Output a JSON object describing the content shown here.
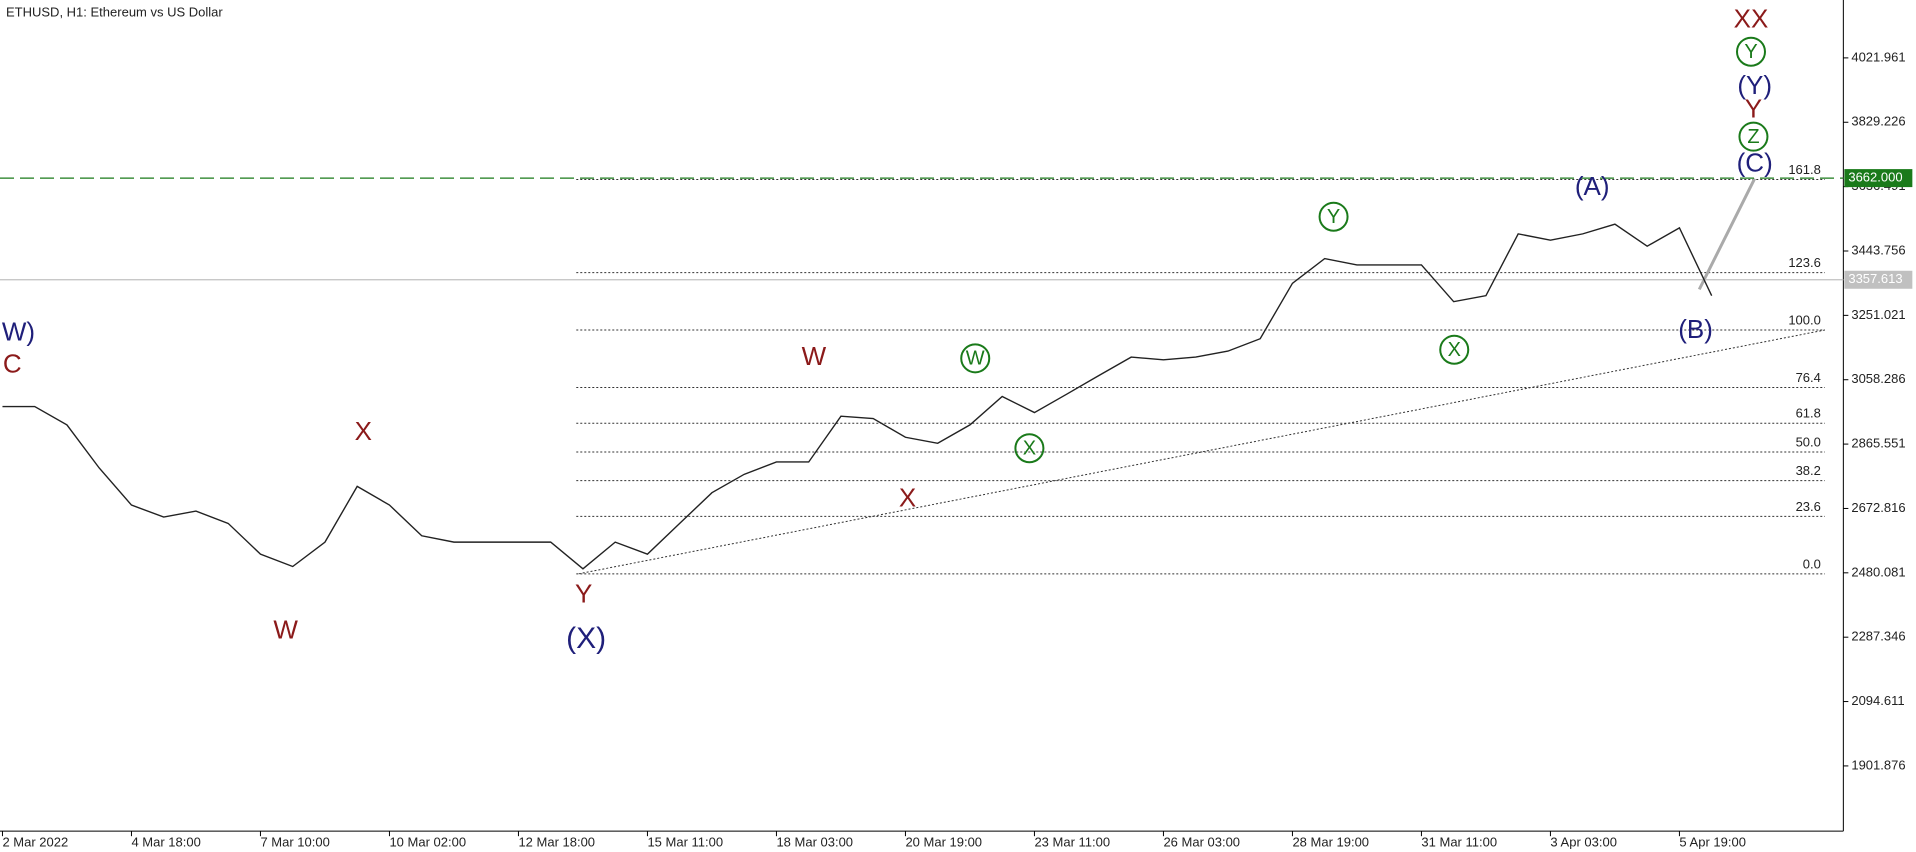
{
  "chart_data": {
    "type": "line",
    "title": "ETHUSD, H1:  Ethereum vs US Dollar",
    "categories": [
      "2 Mar 2022",
      null,
      null,
      null,
      "4 Mar 18:00",
      null,
      null,
      null,
      "7 Mar 10:00",
      null,
      null,
      null,
      "10 Mar 02:00",
      null,
      null,
      null,
      "12 Mar 18:00",
      null,
      null,
      null,
      "15 Mar 11:00",
      null,
      null,
      null,
      "18 Mar 03:00",
      null,
      null,
      null,
      "20 Mar 19:00",
      null,
      null,
      null,
      "23 Mar 11:00",
      null,
      null,
      null,
      "26 Mar 03:00",
      null,
      null,
      null,
      "28 Mar 19:00",
      null,
      null,
      null,
      "31 Mar 11:00",
      null,
      null,
      null,
      "3 Apr 03:00",
      null,
      null,
      null,
      "5 Apr 19:00",
      null
    ],
    "values": [
      2978,
      2978,
      2923,
      2794,
      2683,
      2647,
      2665,
      2628,
      2536,
      2499,
      2572,
      2739,
      2683,
      2591,
      2572,
      2572,
      2572,
      2572,
      2492,
      2572,
      2536,
      2628,
      2720,
      2775,
      2812,
      2812,
      2949,
      2942,
      2886,
      2868,
      2923,
      3008,
      2960,
      3015,
      3071,
      3126,
      3118,
      3126,
      3144,
      3181,
      3347,
      3421,
      3402,
      3402,
      3402,
      3292,
      3310,
      3495,
      3476,
      3495,
      3524,
      3458,
      3513,
      3310
    ],
    "color": "#222222",
    "ylim": [
      1706.5,
      4195.3
    ],
    "yticks": [
      4021.961,
      3829.226,
      3636.491,
      3443.756,
      3251.021,
      3058.286,
      2865.551,
      2672.816,
      2480.081,
      2287.346,
      2094.611,
      1901.876
    ],
    "price_lines": [
      {
        "value": 3662,
        "label": "3662.000",
        "color": "#1a7a1a"
      },
      {
        "value": 3357.613,
        "color": "#c0c0c0"
      }
    ],
    "fib_levels": [
      {
        "value": 2477,
        "label": "0.0"
      },
      {
        "value": 2649,
        "label": "23.6"
      },
      {
        "value": 2756,
        "label": "38.2"
      },
      {
        "value": 2842,
        "label": "50.0"
      },
      {
        "value": 2928,
        "label": "61.8"
      },
      {
        "value": 3035,
        "label": "76.4"
      },
      {
        "value": 3207,
        "label": "100.0"
      },
      {
        "value": 3379,
        "label": "123.6"
      },
      {
        "value": 3658,
        "label": "161.8"
      }
    ],
    "annotations": [
      {
        "text": "W)",
        "color": "#1f1f7a",
        "circled": false
      },
      {
        "text": "C",
        "color": "#8b1a1a",
        "circled": false
      },
      {
        "text": "X",
        "color": "#8b1a1a",
        "circled": false
      },
      {
        "text": "W",
        "color": "#8b1a1a",
        "circled": false
      },
      {
        "text": "Y",
        "color": "#8b1a1a",
        "circled": false
      },
      {
        "text": "(X)",
        "color": "#1f1f7a",
        "circled": false
      },
      {
        "text": "W",
        "color": "#8b1a1a",
        "circled": false
      },
      {
        "text": "X",
        "color": "#8b1a1a",
        "circled": false
      },
      {
        "text": "W",
        "color": "#1a7a1a",
        "circled": true
      },
      {
        "text": "X",
        "color": "#1a7a1a",
        "circled": true
      },
      {
        "text": "Y",
        "color": "#1a7a1a",
        "circled": true
      },
      {
        "text": "X",
        "color": "#1a7a1a",
        "circled": true
      },
      {
        "text": "(A)",
        "color": "#1f1f7a",
        "circled": false
      },
      {
        "text": "(B)",
        "color": "#1f1f7a",
        "circled": false
      },
      {
        "text": "XX",
        "color": "#8b1a1a",
        "circled": false
      },
      {
        "text": "Y",
        "color": "#1a7a1a",
        "circled": true
      },
      {
        "text": "(Y)",
        "color": "#1f1f7a",
        "circled": false
      },
      {
        "text": "Y",
        "color": "#8b1a1a",
        "circled": false
      },
      {
        "text": "Z",
        "color": "#1a7a1a",
        "circled": true
      },
      {
        "text": "(C)",
        "color": "#1f1f7a",
        "circled": false
      }
    ]
  }
}
